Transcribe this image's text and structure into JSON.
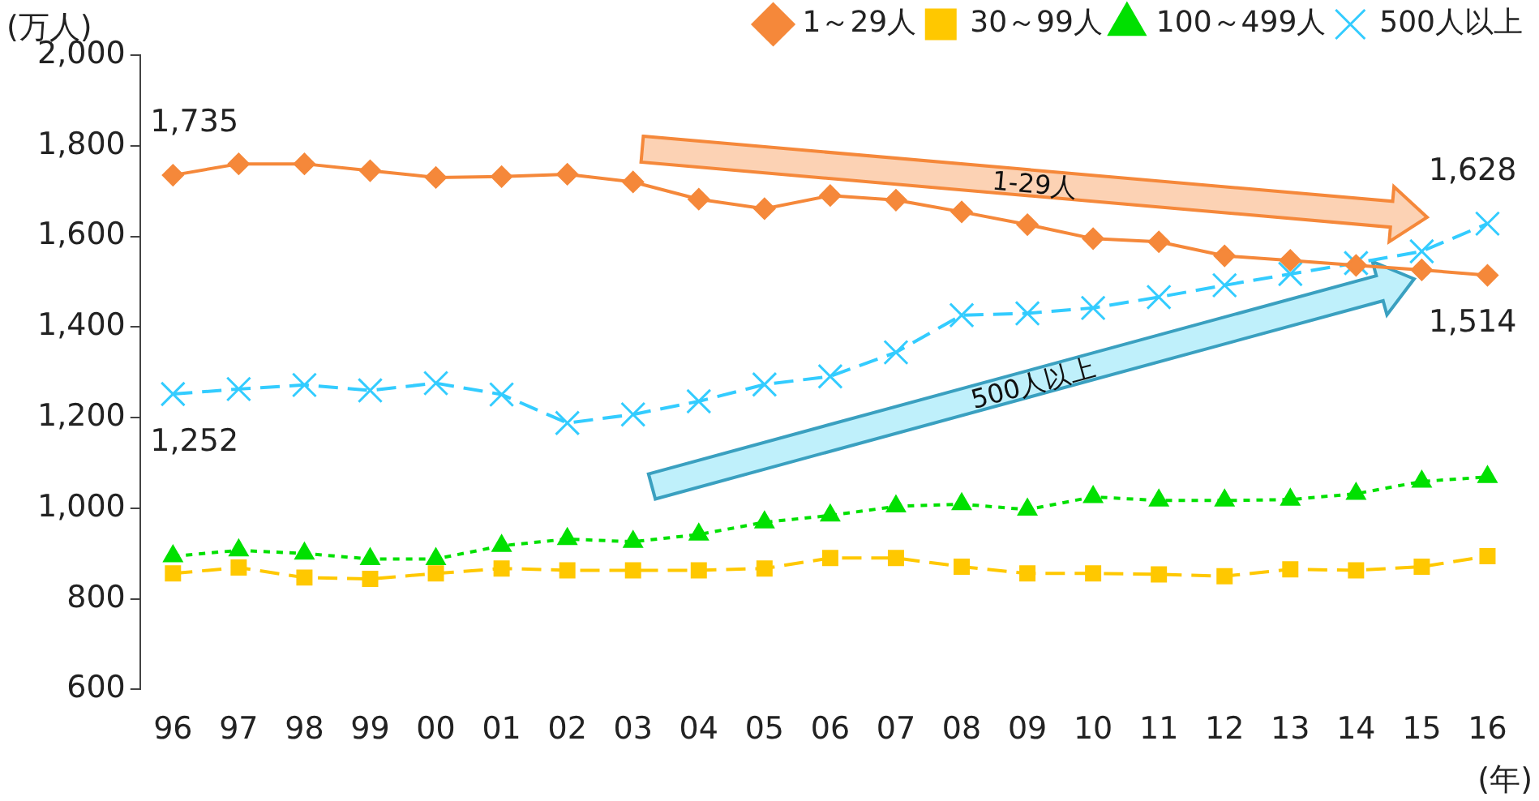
{
  "chart_data": {
    "type": "line",
    "ylabel": "(万人)",
    "xlabel": "(年)",
    "categories": [
      "96",
      "97",
      "98",
      "99",
      "00",
      "01",
      "02",
      "03",
      "04",
      "05",
      "06",
      "07",
      "08",
      "09",
      "10",
      "11",
      "12",
      "13",
      "14",
      "15",
      "16"
    ],
    "series": [
      {
        "name": "1～29人",
        "color": "#f5883a",
        "marker": "diamond",
        "line_style": "solid",
        "values": [
          1735,
          1760,
          1760,
          1745,
          1730,
          1732,
          1737,
          1720,
          1682,
          1661,
          1690,
          1680,
          1654,
          1626,
          1595,
          1588,
          1557,
          1547,
          1536,
          1526,
          1514
        ]
      },
      {
        "name": "30～99人",
        "color": "#ffc800",
        "marker": "square",
        "line_style": "dashed",
        "values": [
          856,
          869,
          847,
          844,
          856,
          867,
          863,
          863,
          863,
          867,
          890,
          890,
          871,
          856,
          856,
          854,
          850,
          865,
          863,
          871,
          894
        ]
      },
      {
        "name": "100～499人",
        "color": "#00e000",
        "marker": "triangle",
        "line_style": "dotted",
        "values": [
          894,
          907,
          900,
          888,
          888,
          917,
          932,
          926,
          942,
          969,
          984,
          1004,
          1009,
          997,
          1025,
          1017,
          1017,
          1019,
          1032,
          1059,
          1069
        ]
      },
      {
        "name": "500人以上",
        "color": "#33ccff",
        "marker": "cross",
        "line_style": "dashed",
        "values": [
          1252,
          1263,
          1272,
          1260,
          1276,
          1251,
          1188,
          1207,
          1236,
          1273,
          1291,
          1344,
          1426,
          1430,
          1442,
          1466,
          1492,
          1517,
          1541,
          1567,
          1628
        ]
      }
    ],
    "ylim": [
      600,
      2000
    ],
    "yticks": [
      {
        "value": 600,
        "label": "600"
      },
      {
        "value": 800,
        "label": "800"
      },
      {
        "value": 1000,
        "label": "1,000"
      },
      {
        "value": 1200,
        "label": "1,200"
      },
      {
        "value": 1400,
        "label": "1,400"
      },
      {
        "value": 1600,
        "label": "1,600"
      },
      {
        "value": 1800,
        "label": "1,800"
      },
      {
        "value": 2000,
        "label": "2,000"
      }
    ],
    "grid": false,
    "legend": "top",
    "annotations": [
      {
        "text": "1,735",
        "x": "96",
        "y": 1735
      },
      {
        "text": "1,252",
        "x": "96",
        "y": 1252
      },
      {
        "text": "1,628",
        "x": "16",
        "y": 1628
      },
      {
        "text": "1,514",
        "x": "16",
        "y": 1514
      },
      "1-29人",
      "500人以上"
    ]
  }
}
